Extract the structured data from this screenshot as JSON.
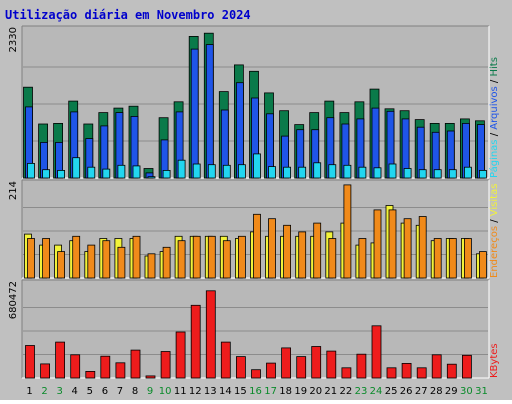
{
  "chart_data": {
    "type": "bar",
    "title": "Utilização diária em Novembro 2024",
    "categories": [
      "1",
      "2",
      "3",
      "4",
      "5",
      "6",
      "7",
      "8",
      "9",
      "10",
      "11",
      "12",
      "13",
      "14",
      "15",
      "16",
      "17",
      "18",
      "19",
      "20",
      "21",
      "22",
      "23",
      "24",
      "25",
      "26",
      "27",
      "28",
      "29",
      "30",
      "31"
    ],
    "weekend_days": [
      "2",
      "3",
      "9",
      "10",
      "16",
      "17",
      "23",
      "24",
      "30",
      "31"
    ],
    "colors": {
      "background": "#c0c0c0",
      "plot": "#b8b8b8",
      "grid": "#8c8c8c",
      "title": "#0000cc",
      "hits": "#0a7a4a",
      "files": "#1f55e8",
      "pages": "#22d6f0",
      "visits": "#f2f23a",
      "hosts": "#f08a1a",
      "kbytes": "#ee1c1c",
      "weekday_label": "#000000",
      "weekend_label": "#0a8a2a"
    },
    "panels": [
      {
        "id": "traffic",
        "max_label": "2330",
        "ylim": [
          0,
          2330
        ],
        "side_labels": [
          "Hits",
          "Arquivos",
          "Páginas"
        ],
        "series": [
          {
            "name": "Hits",
            "values": [
              1430,
              850,
              860,
              1210,
              850,
              1030,
              1100,
              1130,
              150,
              950,
              1200,
              2230,
              2280,
              1360,
              1780,
              1680,
              1340,
              1060,
              840,
              1030,
              1210,
              1030,
              1200,
              1400,
              1090,
              1060,
              920,
              860,
              860,
              930,
              900
            ]
          },
          {
            "name": "Arquivos",
            "values": [
              1120,
              560,
              560,
              1040,
              620,
              820,
              1030,
              970,
              80,
              600,
              1040,
              2030,
              2100,
              1070,
              1500,
              1260,
              1010,
              660,
              760,
              760,
              950,
              850,
              930,
              1100,
              1050,
              930,
              800,
              720,
              740,
              860,
              840
            ]
          },
          {
            "name": "Páginas",
            "values": [
              230,
              130,
              120,
              320,
              170,
              140,
              200,
              190,
              20,
              120,
              280,
              220,
              210,
              200,
              210,
              380,
              180,
              170,
              170,
              240,
              210,
              200,
              170,
              160,
              220,
              150,
              130,
              130,
              130,
              170,
              120
            ]
          }
        ]
      },
      {
        "id": "visitors",
        "max_label": "214",
        "ylim": [
          0,
          214
        ],
        "side_labels": [
          "Visitas",
          "Endereços"
        ],
        "series": [
          {
            "name": "Visitas",
            "values": [
              100,
              75,
              75,
              85,
              60,
              90,
              90,
              90,
              50,
              60,
              95,
              95,
              95,
              95,
              90,
              105,
              95,
              95,
              95,
              95,
              105,
              125,
              75,
              80,
              165,
              125,
              120,
              85,
              90,
              90,
              55
            ]
          },
          {
            "name": "Endereços",
            "values": [
              90,
              90,
              60,
              95,
              75,
              85,
              70,
              95,
              55,
              70,
              85,
              95,
              95,
              85,
              95,
              145,
              135,
              120,
              105,
              125,
              90,
              212,
              90,
              155,
              155,
              135,
              140,
              90,
              90,
              90,
              60
            ]
          }
        ]
      },
      {
        "id": "kbytes",
        "max_label": "680472",
        "ylim": [
          0,
          680472
        ],
        "side_labels": [
          "KBytes"
        ],
        "series": [
          {
            "name": "KBytes",
            "values": [
              235000,
              102000,
              260000,
              168000,
              48000,
              158000,
              110000,
              202000,
              15000,
              192000,
              333000,
              526000,
              631000,
              260000,
              155000,
              60000,
              108000,
              218000,
              155000,
              228000,
              195000,
              74000,
              172000,
              378000,
              74000,
              106000,
              74000,
              168000,
              100000,
              164000,
              0
            ]
          }
        ]
      }
    ]
  }
}
